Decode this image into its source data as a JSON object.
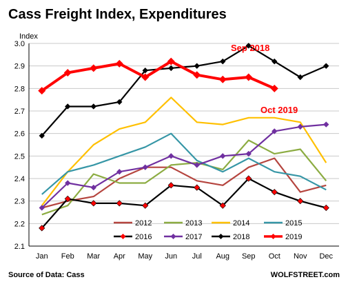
{
  "chart_data": {
    "type": "line",
    "title": "Cass Freight Index, Expenditures",
    "ylabel": "Index",
    "xlabel": "",
    "ylim": [
      2.1,
      3.0
    ],
    "yticks": [
      "2.1",
      "2.2",
      "2.3",
      "2.4",
      "2.5",
      "2.6",
      "2.7",
      "2.8",
      "2.9",
      "3.0"
    ],
    "categories": [
      "Jan",
      "Feb",
      "Mar",
      "Apr",
      "May",
      "Jun",
      "Jul",
      "Aug",
      "Sep",
      "Oct",
      "Nov",
      "Dec"
    ],
    "grid": "horizontal",
    "legend_position": "bottom-center",
    "series": [
      {
        "name": "2012",
        "color": "#b5453f",
        "marker": "none",
        "values": [
          2.27,
          2.3,
          2.32,
          2.4,
          2.45,
          2.45,
          2.39,
          2.37,
          2.45,
          2.49,
          2.34,
          2.37
        ]
      },
      {
        "name": "2013",
        "color": "#8cac42",
        "marker": "none",
        "values": [
          2.24,
          2.28,
          2.42,
          2.38,
          2.38,
          2.46,
          2.47,
          2.44,
          2.57,
          2.51,
          2.53,
          2.39
        ]
      },
      {
        "name": "2014",
        "color": "#ffc000",
        "marker": "none",
        "values": [
          2.28,
          2.43,
          2.55,
          2.62,
          2.65,
          2.76,
          2.65,
          2.64,
          2.67,
          2.67,
          2.65,
          2.47
        ]
      },
      {
        "name": "2015",
        "color": "#3696a6",
        "marker": "none",
        "values": [
          2.33,
          2.43,
          2.46,
          2.5,
          2.54,
          2.6,
          2.48,
          2.43,
          2.49,
          2.43,
          2.41,
          2.35
        ]
      },
      {
        "name": "2016",
        "color": "#000000",
        "marker": "diamond",
        "marker_color": "#ff0000",
        "values": [
          2.18,
          2.31,
          2.29,
          2.29,
          2.28,
          2.37,
          2.36,
          2.28,
          2.4,
          2.34,
          2.3,
          2.27
        ]
      },
      {
        "name": "2017",
        "color": "#7030a0",
        "marker": "diamond",
        "marker_color": "#7030a0",
        "values": [
          2.27,
          2.38,
          2.36,
          2.43,
          2.45,
          2.5,
          2.46,
          2.5,
          2.51,
          2.61,
          2.63,
          2.64
        ]
      },
      {
        "name": "2018",
        "color": "#000000",
        "marker": "diamond",
        "marker_color": "#000000",
        "values": [
          2.59,
          2.72,
          2.72,
          2.74,
          2.88,
          2.89,
          2.9,
          2.92,
          2.99,
          2.92,
          2.85,
          2.9
        ]
      },
      {
        "name": "2019",
        "color": "#ff0000",
        "marker": "diamond",
        "marker_color": "#ff0000",
        "width": 4,
        "values": [
          2.79,
          2.87,
          2.89,
          2.91,
          2.85,
          2.92,
          2.86,
          2.84,
          2.85,
          2.8,
          null,
          null
        ]
      }
    ],
    "annotations": [
      {
        "text": "Sep 2018",
        "color": "#ff0000"
      },
      {
        "text": "Oct 2019",
        "color": "#ff0000"
      }
    ]
  },
  "footer": {
    "source": "Source of Data: Cass",
    "credit": "WOLFSTREET.com"
  }
}
